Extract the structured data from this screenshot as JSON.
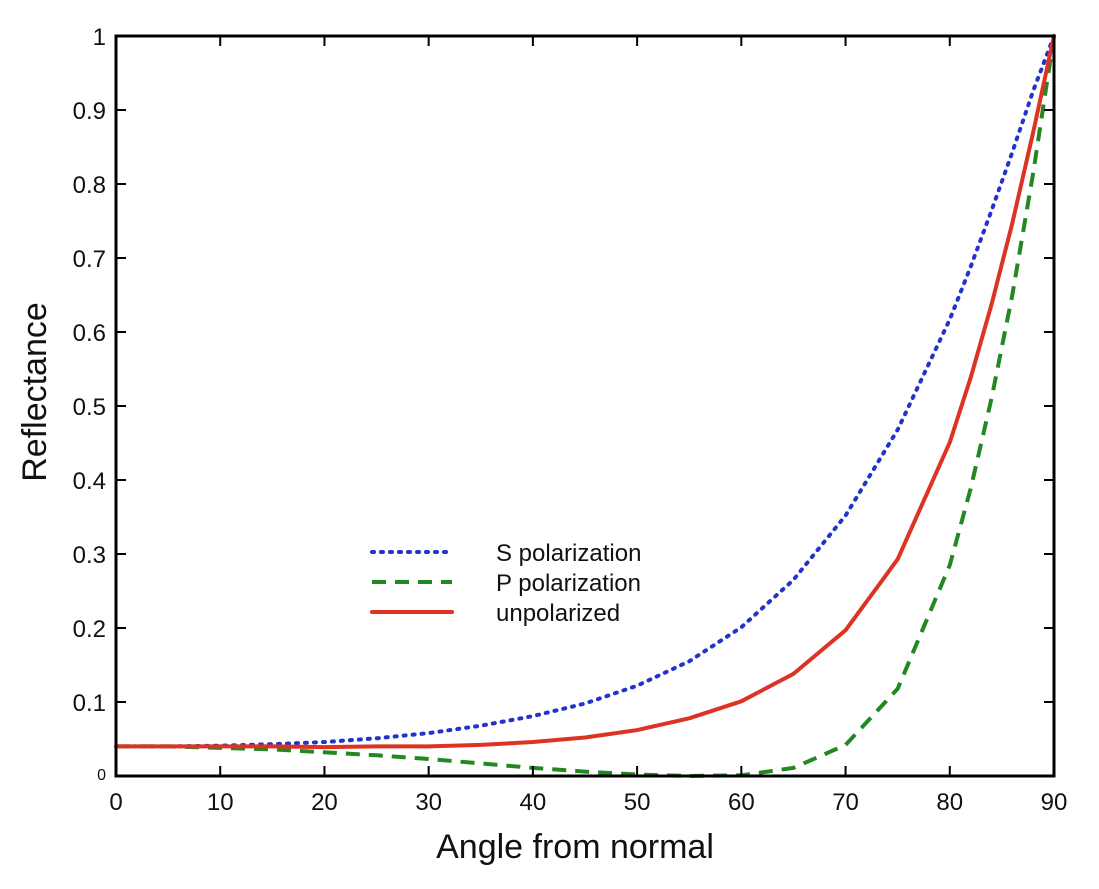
{
  "chart_data": {
    "type": "line",
    "title": "",
    "xlabel": "Angle from normal",
    "ylabel": "Reflectance",
    "xlim": [
      0,
      90
    ],
    "ylim": [
      0,
      1
    ],
    "x_ticks": [
      "0",
      "10",
      "20",
      "30",
      "40",
      "50",
      "60",
      "70",
      "80",
      "90"
    ],
    "y_ticks": [
      "0",
      "0.1",
      "0.2",
      "0.3",
      "0.4",
      "0.5",
      "0.6",
      "0.7",
      "0.8",
      "0.9",
      "1"
    ],
    "grid": false,
    "legend_position": "center",
    "x": [
      0,
      5,
      10,
      15,
      20,
      25,
      30,
      35,
      40,
      45,
      50,
      55,
      60,
      65,
      70,
      75,
      80,
      82,
      84,
      86,
      88,
      90
    ],
    "series": [
      {
        "name": "S polarization",
        "color": "#2233cc",
        "style": "dotted",
        "values": [
          0.04,
          0.04,
          0.041,
          0.043,
          0.046,
          0.051,
          0.058,
          0.068,
          0.081,
          0.098,
          0.122,
          0.155,
          0.201,
          0.265,
          0.352,
          0.468,
          0.617,
          0.688,
          0.764,
          0.843,
          0.926,
          1.0
        ]
      },
      {
        "name": "P polarization",
        "color": "#228822",
        "style": "dashed",
        "values": [
          0.04,
          0.04,
          0.038,
          0.036,
          0.032,
          0.028,
          0.023,
          0.017,
          0.011,
          0.006,
          0.002,
          0.0,
          0.001,
          0.011,
          0.042,
          0.118,
          0.285,
          0.388,
          0.51,
          0.65,
          0.815,
          1.0
        ]
      },
      {
        "name": "unpolarized",
        "color": "#dd3322",
        "style": "solid",
        "values": [
          0.04,
          0.04,
          0.04,
          0.04,
          0.039,
          0.04,
          0.04,
          0.042,
          0.046,
          0.052,
          0.062,
          0.078,
          0.101,
          0.138,
          0.197,
          0.293,
          0.451,
          0.538,
          0.637,
          0.747,
          0.87,
          1.0
        ]
      }
    ]
  }
}
